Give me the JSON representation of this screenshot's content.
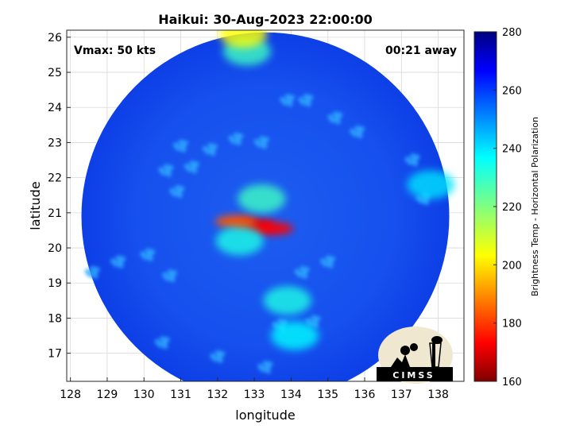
{
  "chart_data": {
    "type": "heatmap",
    "title": "Haikui: 30-Aug-2023 22:00:00",
    "xlabel": "longitude",
    "ylabel": "latitude",
    "xlim": [
      127.9,
      138.7
    ],
    "ylim": [
      16.2,
      26.2
    ],
    "xticks": [
      128,
      129,
      130,
      131,
      132,
      133,
      134,
      135,
      136,
      137,
      138
    ],
    "yticks": [
      17,
      18,
      19,
      20,
      21,
      22,
      23,
      24,
      25,
      26
    ],
    "grid": true,
    "annotations": {
      "vmax": "Vmax: 50 kts",
      "away": "00:21 away"
    },
    "colorbar": {
      "label": "Brightness Temp - Horizontal Polarization",
      "range": [
        160,
        280
      ],
      "ticks": [
        160,
        180,
        200,
        220,
        240,
        260,
        280
      ],
      "colormap": "jet"
    },
    "swath": {
      "center_lon": 133.3,
      "center_lat": 20.9,
      "radius_deg": 5.0
    },
    "features": [
      {
        "name": "eyewall",
        "lon": 133.0,
        "lat": 20.65,
        "value": 172
      },
      {
        "name": "eyewall",
        "lon": 133.5,
        "lat": 20.55,
        "value": 175
      },
      {
        "name": "eyewall",
        "lon": 132.5,
        "lat": 20.75,
        "value": 185
      },
      {
        "name": "inner-band",
        "lon": 133.2,
        "lat": 21.4,
        "value": 228
      },
      {
        "name": "inner-band",
        "lon": 132.6,
        "lat": 20.2,
        "value": 232
      },
      {
        "name": "south-band",
        "lon": 133.9,
        "lat": 18.5,
        "value": 232
      },
      {
        "name": "south-band",
        "lon": 134.1,
        "lat": 17.5,
        "value": 235
      },
      {
        "name": "north-band",
        "lon": 132.8,
        "lat": 25.6,
        "value": 228
      },
      {
        "name": "north-band",
        "lon": 132.7,
        "lat": 26.1,
        "value": 205
      },
      {
        "name": "east-cells",
        "lon": 137.8,
        "lat": 21.8,
        "value": 238
      }
    ],
    "logo_text": "CIMSS",
    "colors": {
      "background": "#ffffff",
      "grid": "#d9d9d9"
    }
  }
}
